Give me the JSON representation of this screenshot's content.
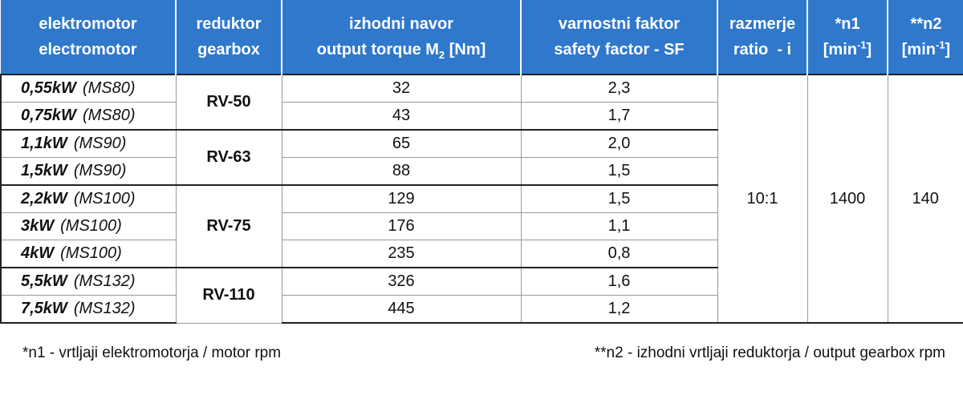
{
  "header": [
    {
      "line1": "elektromotor",
      "line2": "electromotor"
    },
    {
      "line1": "reduktor",
      "line2": "gearbox"
    },
    {
      "line1": "izhodni navor",
      "line2": "output torque M",
      "sub": "2",
      "line2_end": " [Nm]"
    },
    {
      "line1": "varnostni faktor",
      "line2": "safety factor - SF"
    },
    {
      "line1": "razmerje",
      "line2": "ratio  - i"
    },
    {
      "line1": "*n1",
      "line2": "[min",
      "sup": "-1",
      "line2_end": "]"
    },
    {
      "line1": "**n2",
      "line2": "[min",
      "sup": "-1",
      "line2_end": "]"
    }
  ],
  "groups": [
    {
      "gearbox": "RV-50",
      "rows": [
        {
          "power": "0,55kW",
          "motor": "(MS80)",
          "torque": 32,
          "sf": "2,3"
        },
        {
          "power": "0,75kW",
          "motor": "(MS80)",
          "torque": 43,
          "sf": "1,7"
        }
      ]
    },
    {
      "gearbox": "RV-63",
      "rows": [
        {
          "power": "1,1kW",
          "motor": "(MS90)",
          "torque": 65,
          "sf": "2,0"
        },
        {
          "power": "1,5kW",
          "motor": "(MS90)",
          "torque": 88,
          "sf": "1,5"
        }
      ]
    },
    {
      "gearbox": "RV-75",
      "rows": [
        {
          "power": "2,2kW",
          "motor": "(MS100)",
          "torque": 129,
          "sf": "1,5"
        },
        {
          "power": "3kW",
          "motor": "(MS100)",
          "torque": 176,
          "sf": "1,1"
        },
        {
          "power": "4kW",
          "motor": "(MS100)",
          "torque": 235,
          "sf": "0,8"
        }
      ]
    },
    {
      "gearbox": "RV-110",
      "rows": [
        {
          "power": "5,5kW",
          "motor": "(MS132)",
          "torque": 326,
          "sf": "1,6"
        },
        {
          "power": "7,5kW",
          "motor": "(MS132)",
          "torque": 445,
          "sf": "1,2"
        }
      ]
    }
  ],
  "merged": {
    "ratio": "10:1",
    "n1": 1400,
    "n2": 140
  },
  "notes": [
    "*n1 - vrtljaji elektromotorja / motor rpm",
    "**n2 - izhodni vrtljaji reduktorja / output gearbox rpm"
  ]
}
